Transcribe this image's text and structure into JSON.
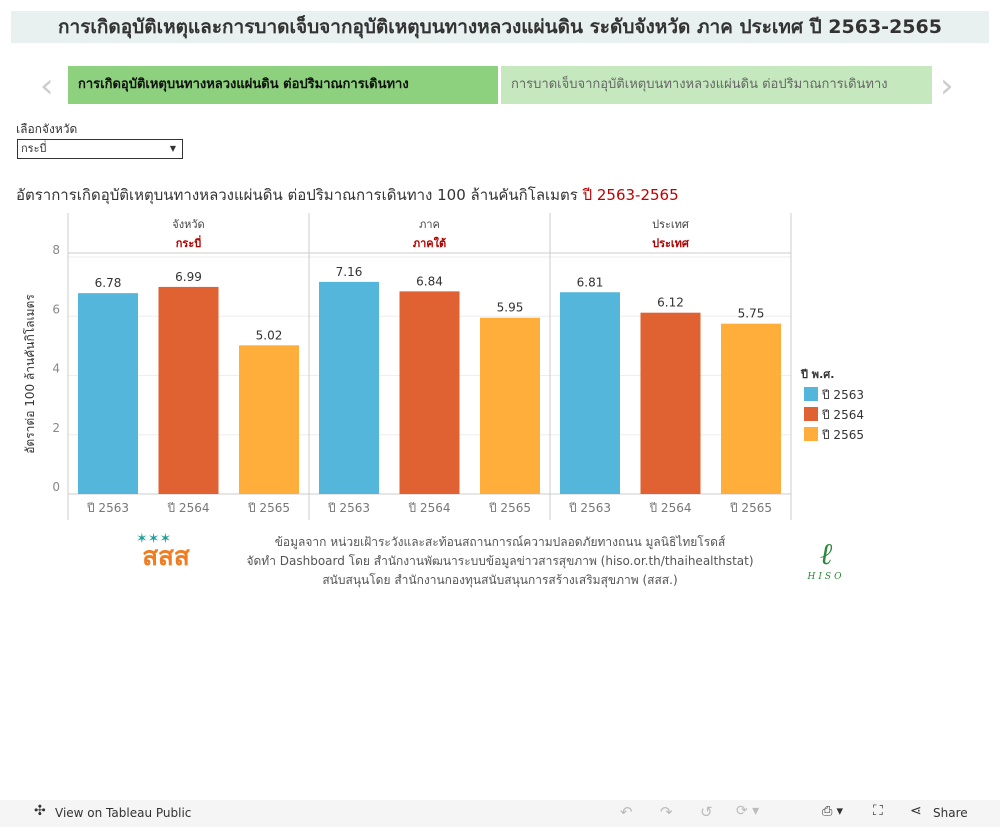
{
  "title": "การเกิดอุบัติเหตุและการบาดเจ็บจากอุบัติเหตุบนทางหลวงแผ่นดิน ระดับจังหวัด ภาค ประเทศ ปี 2563-2565",
  "tabs": [
    {
      "label": "การเกิดอุบัติเหตุบนทางหลวงแผ่นดิน ต่อปริมาณการเดินทาง"
    },
    {
      "label": "การบาดเจ็บจากอุบัติเหตุบนทางหลวงแผ่นดิน ต่อปริมาณการเดินทาง"
    }
  ],
  "filter": {
    "label": "เลือกจังหวัด",
    "value": "กระบี่"
  },
  "chart_title": {
    "main": "อัตราการเกิดอุบัติเหตุบนทางหลวงแผ่นดิน ต่อปริมาณการเดินทาง 100 ล้านคันกิโลเมตร ",
    "years": "ปี 2563-2565"
  },
  "chart_data": {
    "type": "bar",
    "ylabel": "อัตราต่อ 100 ล้านคันกิโลเมตร",
    "ylim": [
      0,
      8
    ],
    "yticks": [
      0,
      2,
      4,
      6,
      8
    ],
    "panels": [
      {
        "header": "จังหวัด",
        "name": "กระบี่",
        "values": [
          6.78,
          6.99,
          5.02
        ]
      },
      {
        "header": "ภาค",
        "name": "ภาคใต้",
        "values": [
          7.16,
          6.84,
          5.95
        ]
      },
      {
        "header": "ประเทศ",
        "name": "ประเทศ",
        "values": [
          6.81,
          6.12,
          5.75
        ]
      }
    ],
    "categories": [
      "ปี 2563",
      "ปี 2564",
      "ปี 2565"
    ],
    "legend": {
      "title": "ปี พ.ศ.",
      "position": "right",
      "items": [
        "ปี 2563",
        "ปี 2564",
        "ปี 2565"
      ]
    },
    "colors": [
      "#54b6db",
      "#e06132",
      "#ffae3b"
    ]
  },
  "source": [
    "ข้อมูลจาก หน่วยเฝ้าระวังและสะท้อนสถานการณ์ความปลอดภัยทางถนน มูลนิธิไทยโรดส์",
    "จัดทำ Dashboard โดย สำนักงานพัฒนาระบบข้อมูลข่าวสารสุขภาพ (hiso.or.th/thaihealthstat)",
    "สนับสนุนโดย สำนักงานกองทุนสนับสนุนการสร้างเสริมสุขภาพ (สสส.)"
  ],
  "logos": {
    "left": "สสส",
    "right": "HISO"
  },
  "footer": {
    "view": "View on Tableau Public",
    "share": "Share"
  }
}
